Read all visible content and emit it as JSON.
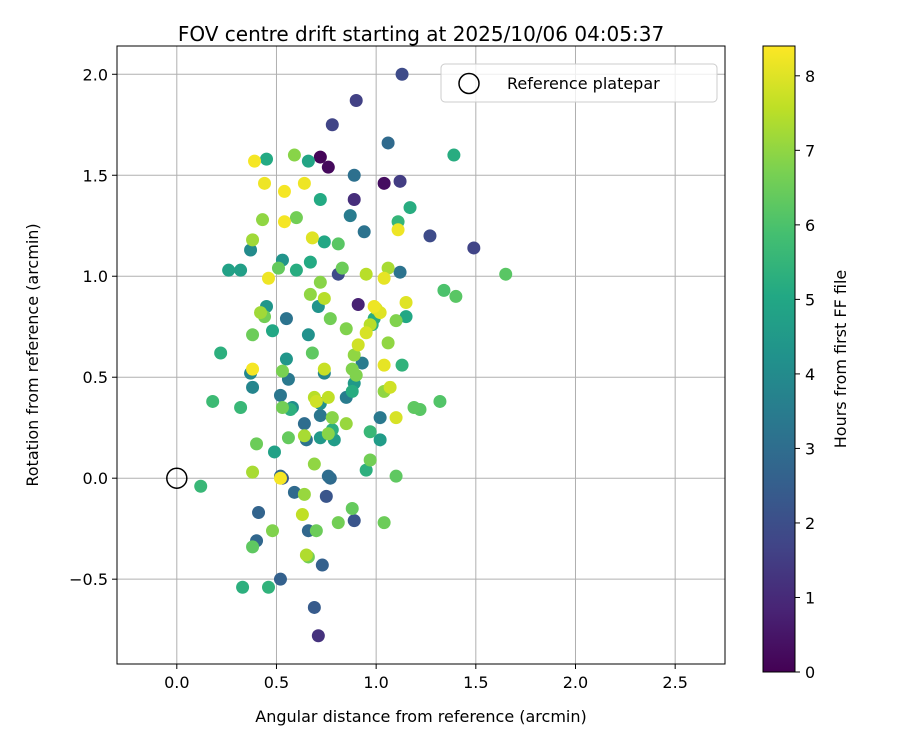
{
  "chart_data": {
    "type": "scatter",
    "title": "FOV centre drift starting at 2025/10/06 04:05:37",
    "xlabel": "Angular distance from reference (arcmin)",
    "ylabel": "Rotation from reference (arcmin)",
    "xlim": [
      -0.3,
      2.75
    ],
    "ylim": [
      -0.92,
      2.14
    ],
    "xticks": [
      0.0,
      0.5,
      1.0,
      1.5,
      2.0,
      2.5
    ],
    "xtick_labels": [
      "0.0",
      "0.5",
      "1.0",
      "1.5",
      "2.0",
      "2.5"
    ],
    "yticks": [
      -0.5,
      0.0,
      0.5,
      1.0,
      1.5,
      2.0
    ],
    "ytick_labels": [
      "−0.5",
      "0.0",
      "0.5",
      "1.0",
      "1.5",
      "2.0"
    ],
    "grid": true,
    "colormap": "viridis",
    "colorbar": {
      "label": "Hours from first FF file",
      "range": [
        0,
        8.4
      ],
      "ticks": [
        0,
        1,
        2,
        3,
        4,
        5,
        6,
        7,
        8
      ],
      "tick_labels": [
        "0",
        "1",
        "2",
        "3",
        "4",
        "5",
        "6",
        "7",
        "8"
      ]
    },
    "legend": {
      "placement": "top-right",
      "entries": [
        {
          "label": "Reference platepar",
          "marker": "open-circle"
        }
      ]
    },
    "reference_point": {
      "x": 0.0,
      "y": 0.0
    },
    "points": [
      {
        "x": 0.72,
        "y": 1.59,
        "c": 0.1
      },
      {
        "x": 0.76,
        "y": 1.54,
        "c": 0.2
      },
      {
        "x": 1.04,
        "y": 1.46,
        "c": 0.3
      },
      {
        "x": 0.91,
        "y": 0.86,
        "c": 0.8
      },
      {
        "x": 0.71,
        "y": -0.78,
        "c": 1.2
      },
      {
        "x": 0.89,
        "y": 1.38,
        "c": 1.1
      },
      {
        "x": 0.9,
        "y": 1.87,
        "c": 1.6
      },
      {
        "x": 0.78,
        "y": 1.75,
        "c": 1.7
      },
      {
        "x": 1.13,
        "y": 2.0,
        "c": 1.9
      },
      {
        "x": 1.12,
        "y": 1.47,
        "c": 1.5
      },
      {
        "x": 1.49,
        "y": 1.14,
        "c": 1.7
      },
      {
        "x": 1.27,
        "y": 1.2,
        "c": 1.9
      },
      {
        "x": 0.81,
        "y": 1.01,
        "c": 1.9
      },
      {
        "x": 0.75,
        "y": -0.09,
        "c": 2.2
      },
      {
        "x": 0.89,
        "y": -0.21,
        "c": 2.2
      },
      {
        "x": 0.69,
        "y": -0.64,
        "c": 2.4
      },
      {
        "x": 0.73,
        "y": -0.43,
        "c": 2.6
      },
      {
        "x": 0.52,
        "y": -0.5,
        "c": 2.6
      },
      {
        "x": 0.41,
        "y": -0.17,
        "c": 2.7
      },
      {
        "x": 0.4,
        "y": -0.31,
        "c": 2.8
      },
      {
        "x": 0.52,
        "y": 0.01,
        "c": 2.8
      },
      {
        "x": 0.53,
        "y": 0.0,
        "c": 2.4
      },
      {
        "x": 0.59,
        "y": -0.07,
        "c": 2.9
      },
      {
        "x": 0.66,
        "y": -0.26,
        "c": 2.8
      },
      {
        "x": 0.77,
        "y": 0.0,
        "c": 2.9
      },
      {
        "x": 0.76,
        "y": 0.01,
        "c": 3.0
      },
      {
        "x": 0.64,
        "y": 0.27,
        "c": 3.0
      },
      {
        "x": 0.72,
        "y": 0.31,
        "c": 3.3
      },
      {
        "x": 0.65,
        "y": 0.19,
        "c": 3.2
      },
      {
        "x": 0.55,
        "y": 0.79,
        "c": 3.2
      },
      {
        "x": 0.52,
        "y": 0.41,
        "c": 3.3
      },
      {
        "x": 0.56,
        "y": 0.49,
        "c": 3.4
      },
      {
        "x": 0.93,
        "y": 0.57,
        "c": 3.5
      },
      {
        "x": 0.85,
        "y": 0.4,
        "c": 3.5
      },
      {
        "x": 1.02,
        "y": 0.3,
        "c": 3.4
      },
      {
        "x": 1.06,
        "y": 1.66,
        "c": 2.9
      },
      {
        "x": 0.89,
        "y": 1.5,
        "c": 3.1
      },
      {
        "x": 0.94,
        "y": 1.22,
        "c": 3.2
      },
      {
        "x": 0.87,
        "y": 1.3,
        "c": 3.5
      },
      {
        "x": 1.12,
        "y": 1.02,
        "c": 3.2
      },
      {
        "x": 0.74,
        "y": 0.52,
        "c": 3.8
      },
      {
        "x": 0.38,
        "y": 0.45,
        "c": 3.8
      },
      {
        "x": 0.37,
        "y": 0.52,
        "c": 3.9
      },
      {
        "x": 0.37,
        "y": 1.13,
        "c": 4.0
      },
      {
        "x": 0.53,
        "y": 1.08,
        "c": 4.3
      },
      {
        "x": 0.71,
        "y": 0.85,
        "c": 4.3
      },
      {
        "x": 0.66,
        "y": 0.71,
        "c": 4.2
      },
      {
        "x": 0.45,
        "y": 0.85,
        "c": 4.4
      },
      {
        "x": 0.72,
        "y": 0.37,
        "c": 4.2
      },
      {
        "x": 0.58,
        "y": 0.35,
        "c": 4.1
      },
      {
        "x": 0.55,
        "y": 0.59,
        "c": 4.4
      },
      {
        "x": 0.89,
        "y": 0.47,
        "c": 4.5
      },
      {
        "x": 1.02,
        "y": 0.19,
        "c": 4.6
      },
      {
        "x": 0.79,
        "y": 0.19,
        "c": 4.6
      },
      {
        "x": 0.72,
        "y": 0.2,
        "c": 4.5
      },
      {
        "x": 0.32,
        "y": 1.03,
        "c": 4.7
      },
      {
        "x": 0.26,
        "y": 1.03,
        "c": 4.8
      },
      {
        "x": 0.49,
        "y": 0.13,
        "c": 4.8
      },
      {
        "x": 0.48,
        "y": 0.73,
        "c": 5.0
      },
      {
        "x": 0.66,
        "y": 1.57,
        "c": 4.9
      },
      {
        "x": 0.45,
        "y": 1.58,
        "c": 5.1
      },
      {
        "x": 0.72,
        "y": 1.38,
        "c": 5.1
      },
      {
        "x": 0.74,
        "y": 1.17,
        "c": 5.0
      },
      {
        "x": 0.67,
        "y": 1.07,
        "c": 5.1
      },
      {
        "x": 0.6,
        "y": 1.03,
        "c": 5.2
      },
      {
        "x": 1.17,
        "y": 1.34,
        "c": 5.2
      },
      {
        "x": 1.11,
        "y": 1.27,
        "c": 5.5
      },
      {
        "x": 1.39,
        "y": 1.6,
        "c": 5.2
      },
      {
        "x": 1.15,
        "y": 0.8,
        "c": 5.0
      },
      {
        "x": 0.98,
        "y": 0.76,
        "c": 5.3
      },
      {
        "x": 0.99,
        "y": 0.79,
        "c": 5.2
      },
      {
        "x": 1.13,
        "y": 0.56,
        "c": 5.4
      },
      {
        "x": 0.88,
        "y": 0.43,
        "c": 5.2
      },
      {
        "x": 0.97,
        "y": 0.23,
        "c": 5.6
      },
      {
        "x": 0.95,
        "y": 0.04,
        "c": 5.3
      },
      {
        "x": 0.78,
        "y": 0.24,
        "c": 5.3
      },
      {
        "x": 0.57,
        "y": 0.34,
        "c": 5.3
      },
      {
        "x": 0.22,
        "y": 0.62,
        "c": 5.3
      },
      {
        "x": 0.18,
        "y": 0.38,
        "c": 5.7
      },
      {
        "x": 0.32,
        "y": 0.35,
        "c": 5.6
      },
      {
        "x": 0.12,
        "y": -0.04,
        "c": 5.6
      },
      {
        "x": 0.33,
        "y": -0.54,
        "c": 5.3
      },
      {
        "x": 0.46,
        "y": -0.54,
        "c": 5.4
      },
      {
        "x": 1.34,
        "y": 0.93,
        "c": 6.0
      },
      {
        "x": 1.4,
        "y": 0.9,
        "c": 6.2
      },
      {
        "x": 1.65,
        "y": 1.01,
        "c": 6.2
      },
      {
        "x": 1.32,
        "y": 0.38,
        "c": 6.1
      },
      {
        "x": 1.22,
        "y": 0.34,
        "c": 6.2
      },
      {
        "x": 1.19,
        "y": 0.35,
        "c": 6.3
      },
      {
        "x": 1.04,
        "y": -0.22,
        "c": 6.5
      },
      {
        "x": 1.1,
        "y": 0.01,
        "c": 6.3
      },
      {
        "x": 0.97,
        "y": 0.09,
        "c": 6.6
      },
      {
        "x": 0.88,
        "y": -0.15,
        "c": 6.4
      },
      {
        "x": 0.81,
        "y": -0.22,
        "c": 6.6
      },
      {
        "x": 0.7,
        "y": -0.26,
        "c": 6.5
      },
      {
        "x": 0.66,
        "y": -0.39,
        "c": 6.6
      },
      {
        "x": 0.38,
        "y": -0.34,
        "c": 6.3
      },
      {
        "x": 0.48,
        "y": -0.26,
        "c": 6.8
      },
      {
        "x": 0.4,
        "y": 0.17,
        "c": 6.5
      },
      {
        "x": 0.56,
        "y": 0.2,
        "c": 6.4
      },
      {
        "x": 0.53,
        "y": 0.35,
        "c": 6.6
      },
      {
        "x": 0.53,
        "y": 0.53,
        "c": 6.7
      },
      {
        "x": 0.38,
        "y": 0.71,
        "c": 6.5
      },
      {
        "x": 0.44,
        "y": 0.8,
        "c": 6.6
      },
      {
        "x": 0.51,
        "y": 1.04,
        "c": 6.4
      },
      {
        "x": 0.6,
        "y": 1.29,
        "c": 6.6
      },
      {
        "x": 0.59,
        "y": 1.6,
        "c": 6.9
      },
      {
        "x": 0.81,
        "y": 1.16,
        "c": 6.2
      },
      {
        "x": 0.83,
        "y": 1.04,
        "c": 6.5
      },
      {
        "x": 0.85,
        "y": 0.74,
        "c": 6.8
      },
      {
        "x": 0.68,
        "y": 0.62,
        "c": 6.3
      },
      {
        "x": 0.77,
        "y": 0.79,
        "c": 6.6
      },
      {
        "x": 0.72,
        "y": 0.97,
        "c": 6.9
      },
      {
        "x": 0.67,
        "y": 0.91,
        "c": 7.0
      },
      {
        "x": 0.88,
        "y": 0.54,
        "c": 6.8
      },
      {
        "x": 0.9,
        "y": 0.51,
        "c": 6.8
      },
      {
        "x": 0.89,
        "y": 0.61,
        "c": 7.0
      },
      {
        "x": 0.78,
        "y": 0.3,
        "c": 6.9
      },
      {
        "x": 0.85,
        "y": 0.27,
        "c": 7.1
      },
      {
        "x": 0.76,
        "y": 0.22,
        "c": 6.9
      },
      {
        "x": 0.64,
        "y": 0.21,
        "c": 7.3
      },
      {
        "x": 0.69,
        "y": 0.07,
        "c": 7.0
      },
      {
        "x": 0.64,
        "y": -0.08,
        "c": 7.1
      },
      {
        "x": 0.63,
        "y": -0.18,
        "c": 7.6
      },
      {
        "x": 0.65,
        "y": -0.38,
        "c": 7.4
      },
      {
        "x": 0.38,
        "y": 0.03,
        "c": 7.3
      },
      {
        "x": 0.42,
        "y": 0.82,
        "c": 7.2
      },
      {
        "x": 0.43,
        "y": 1.28,
        "c": 7.0
      },
      {
        "x": 0.38,
        "y": 1.18,
        "c": 7.2
      },
      {
        "x": 1.06,
        "y": 0.67,
        "c": 7.0
      },
      {
        "x": 1.04,
        "y": 0.43,
        "c": 7.0
      },
      {
        "x": 1.1,
        "y": 0.78,
        "c": 6.8
      },
      {
        "x": 1.06,
        "y": 1.04,
        "c": 7.3
      },
      {
        "x": 0.95,
        "y": 1.01,
        "c": 7.5
      },
      {
        "x": 0.97,
        "y": 0.76,
        "c": 7.5
      },
      {
        "x": 0.91,
        "y": 0.66,
        "c": 7.8
      },
      {
        "x": 0.95,
        "y": 0.72,
        "c": 7.9
      },
      {
        "x": 0.74,
        "y": 0.89,
        "c": 7.5
      },
      {
        "x": 0.74,
        "y": 0.54,
        "c": 7.7
      },
      {
        "x": 0.69,
        "y": 0.4,
        "c": 7.5
      },
      {
        "x": 0.76,
        "y": 0.4,
        "c": 7.6
      },
      {
        "x": 0.7,
        "y": 0.38,
        "c": 7.8
      },
      {
        "x": 1.07,
        "y": 0.45,
        "c": 7.8
      },
      {
        "x": 1.04,
        "y": 0.56,
        "c": 8.1
      },
      {
        "x": 1.1,
        "y": 0.3,
        "c": 7.9
      },
      {
        "x": 1.0,
        "y": 0.84,
        "c": 7.9
      },
      {
        "x": 1.02,
        "y": 0.82,
        "c": 8.0
      },
      {
        "x": 0.99,
        "y": 0.85,
        "c": 8.2
      },
      {
        "x": 1.15,
        "y": 0.87,
        "c": 8.0
      },
      {
        "x": 1.04,
        "y": 0.99,
        "c": 8.1
      },
      {
        "x": 1.11,
        "y": 1.23,
        "c": 8.2
      },
      {
        "x": 0.68,
        "y": 1.19,
        "c": 8.0
      },
      {
        "x": 0.54,
        "y": 1.27,
        "c": 8.3
      },
      {
        "x": 0.46,
        "y": 0.99,
        "c": 8.2
      },
      {
        "x": 0.54,
        "y": 1.42,
        "c": 8.3
      },
      {
        "x": 0.64,
        "y": 1.46,
        "c": 8.2
      },
      {
        "x": 0.44,
        "y": 1.46,
        "c": 8.2
      },
      {
        "x": 0.39,
        "y": 1.57,
        "c": 8.3
      },
      {
        "x": 0.38,
        "y": 0.54,
        "c": 8.3
      },
      {
        "x": 0.52,
        "y": 0.0,
        "c": 8.3
      }
    ]
  }
}
